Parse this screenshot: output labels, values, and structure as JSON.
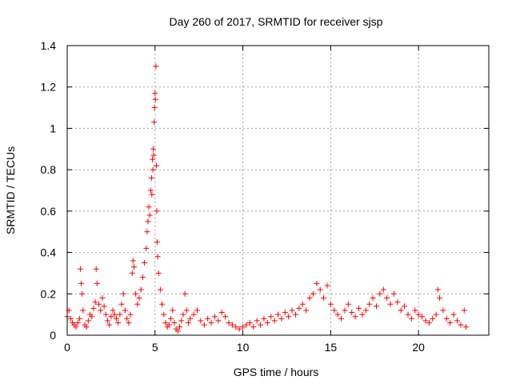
{
  "chart_data": {
    "type": "scatter",
    "title": "Day 260 of 2017, SRMTID for receiver sjsp",
    "xlabel": "GPS time / hours",
    "ylabel": "SRMTID / TECUs",
    "xlim": [
      0,
      24
    ],
    "ylim": [
      0,
      1.4
    ],
    "xticks": [
      0,
      5,
      10,
      15,
      20
    ],
    "yticks": [
      0,
      0.2,
      0.4,
      0.6,
      0.8,
      1,
      1.2,
      1.4
    ],
    "xtick_labels": [
      "0",
      "5",
      "10",
      "15",
      "20"
    ],
    "ytick_labels": [
      "0",
      "0.2",
      "0.4",
      "0.6",
      "0.8",
      "1",
      "1.2",
      "1.4"
    ],
    "grid": true,
    "marker": "+",
    "color": "#ff0000",
    "series": [
      {
        "name": "sjsp",
        "points": [
          [
            0.0,
            0.09
          ],
          [
            0.1,
            0.12
          ],
          [
            0.2,
            0.08
          ],
          [
            0.3,
            0.06
          ],
          [
            0.4,
            0.05
          ],
          [
            0.5,
            0.04
          ],
          [
            0.6,
            0.06
          ],
          [
            0.7,
            0.08
          ],
          [
            0.75,
            0.32
          ],
          [
            0.8,
            0.25
          ],
          [
            0.85,
            0.2
          ],
          [
            0.9,
            0.12
          ],
          [
            1.0,
            0.05
          ],
          [
            1.1,
            0.04
          ],
          [
            1.2,
            0.07
          ],
          [
            1.3,
            0.1
          ],
          [
            1.4,
            0.09
          ],
          [
            1.5,
            0.13
          ],
          [
            1.6,
            0.16
          ],
          [
            1.65,
            0.32
          ],
          [
            1.7,
            0.25
          ],
          [
            1.8,
            0.15
          ],
          [
            1.9,
            0.12
          ],
          [
            2.0,
            0.18
          ],
          [
            2.1,
            0.14
          ],
          [
            2.2,
            0.1
          ],
          [
            2.3,
            0.07
          ],
          [
            2.4,
            0.05
          ],
          [
            2.5,
            0.09
          ],
          [
            2.6,
            0.12
          ],
          [
            2.7,
            0.1
          ],
          [
            2.8,
            0.08
          ],
          [
            2.9,
            0.06
          ],
          [
            3.0,
            0.1
          ],
          [
            3.1,
            0.15
          ],
          [
            3.2,
            0.2
          ],
          [
            3.3,
            0.12
          ],
          [
            3.4,
            0.08
          ],
          [
            3.5,
            0.06
          ],
          [
            3.6,
            0.1
          ],
          [
            3.7,
            0.3
          ],
          [
            3.75,
            0.36
          ],
          [
            3.8,
            0.33
          ],
          [
            3.9,
            0.2
          ],
          [
            4.0,
            0.15
          ],
          [
            4.1,
            0.18
          ],
          [
            4.2,
            0.22
          ],
          [
            4.3,
            0.28
          ],
          [
            4.4,
            0.35
          ],
          [
            4.5,
            0.42
          ],
          [
            4.55,
            0.5
          ],
          [
            4.6,
            0.55
          ],
          [
            4.65,
            0.62
          ],
          [
            4.7,
            0.58
          ],
          [
            4.75,
            0.7
          ],
          [
            4.8,
            0.76
          ],
          [
            4.82,
            0.68
          ],
          [
            4.85,
            0.85
          ],
          [
            4.88,
            0.8
          ],
          [
            4.9,
            0.9
          ],
          [
            4.92,
            0.87
          ],
          [
            4.95,
            1.03
          ],
          [
            4.97,
            1.1
          ],
          [
            5.0,
            1.17
          ],
          [
            5.02,
            1.14
          ],
          [
            5.05,
            1.3
          ],
          [
            5.08,
            0.82
          ],
          [
            5.1,
            0.6
          ],
          [
            5.12,
            0.45
          ],
          [
            5.15,
            0.38
          ],
          [
            5.2,
            0.3
          ],
          [
            5.3,
            0.22
          ],
          [
            5.4,
            0.15
          ],
          [
            5.5,
            0.1
          ],
          [
            5.6,
            0.06
          ],
          [
            5.7,
            0.04
          ],
          [
            5.8,
            0.05
          ],
          [
            5.9,
            0.08
          ],
          [
            6.0,
            0.12
          ],
          [
            6.1,
            0.06
          ],
          [
            6.2,
            0.03
          ],
          [
            6.3,
            0.02
          ],
          [
            6.4,
            0.04
          ],
          [
            6.5,
            0.07
          ],
          [
            6.6,
            0.1
          ],
          [
            6.7,
            0.2
          ],
          [
            6.8,
            0.12
          ],
          [
            6.9,
            0.06
          ],
          [
            7.0,
            0.08
          ],
          [
            7.2,
            0.1
          ],
          [
            7.4,
            0.12
          ],
          [
            7.6,
            0.07
          ],
          [
            7.8,
            0.05
          ],
          [
            8.0,
            0.08
          ],
          [
            8.2,
            0.06
          ],
          [
            8.4,
            0.09
          ],
          [
            8.6,
            0.07
          ],
          [
            8.8,
            0.11
          ],
          [
            9.0,
            0.09
          ],
          [
            9.2,
            0.06
          ],
          [
            9.4,
            0.05
          ],
          [
            9.6,
            0.04
          ],
          [
            9.8,
            0.03
          ],
          [
            10.0,
            0.04
          ],
          [
            10.2,
            0.05
          ],
          [
            10.4,
            0.06
          ],
          [
            10.6,
            0.04
          ],
          [
            10.8,
            0.07
          ],
          [
            11.0,
            0.05
          ],
          [
            11.2,
            0.08
          ],
          [
            11.4,
            0.06
          ],
          [
            11.6,
            0.09
          ],
          [
            11.8,
            0.07
          ],
          [
            12.0,
            0.1
          ],
          [
            12.2,
            0.08
          ],
          [
            12.4,
            0.11
          ],
          [
            12.6,
            0.09
          ],
          [
            12.8,
            0.12
          ],
          [
            13.0,
            0.1
          ],
          [
            13.2,
            0.13
          ],
          [
            13.4,
            0.15
          ],
          [
            13.6,
            0.12
          ],
          [
            13.8,
            0.18
          ],
          [
            14.0,
            0.2
          ],
          [
            14.2,
            0.25
          ],
          [
            14.4,
            0.22
          ],
          [
            14.6,
            0.18
          ],
          [
            14.8,
            0.24
          ],
          [
            15.0,
            0.15
          ],
          [
            15.2,
            0.12
          ],
          [
            15.4,
            0.1
          ],
          [
            15.6,
            0.08
          ],
          [
            15.8,
            0.12
          ],
          [
            16.0,
            0.15
          ],
          [
            16.2,
            0.11
          ],
          [
            16.4,
            0.09
          ],
          [
            16.6,
            0.13
          ],
          [
            16.8,
            0.1
          ],
          [
            17.0,
            0.12
          ],
          [
            17.2,
            0.15
          ],
          [
            17.4,
            0.18
          ],
          [
            17.6,
            0.14
          ],
          [
            17.8,
            0.2
          ],
          [
            18.0,
            0.22
          ],
          [
            18.2,
            0.18
          ],
          [
            18.4,
            0.15
          ],
          [
            18.6,
            0.2
          ],
          [
            18.8,
            0.16
          ],
          [
            19.0,
            0.12
          ],
          [
            19.2,
            0.14
          ],
          [
            19.4,
            0.1
          ],
          [
            19.6,
            0.08
          ],
          [
            19.8,
            0.12
          ],
          [
            20.0,
            0.1
          ],
          [
            20.2,
            0.09
          ],
          [
            20.4,
            0.07
          ],
          [
            20.6,
            0.06
          ],
          [
            20.8,
            0.08
          ],
          [
            21.0,
            0.1
          ],
          [
            21.1,
            0.22
          ],
          [
            21.2,
            0.18
          ],
          [
            21.4,
            0.12
          ],
          [
            21.6,
            0.08
          ],
          [
            21.8,
            0.06
          ],
          [
            22.0,
            0.1
          ],
          [
            22.2,
            0.07
          ],
          [
            22.4,
            0.05
          ],
          [
            22.6,
            0.12
          ],
          [
            22.7,
            0.04
          ]
        ]
      }
    ]
  }
}
